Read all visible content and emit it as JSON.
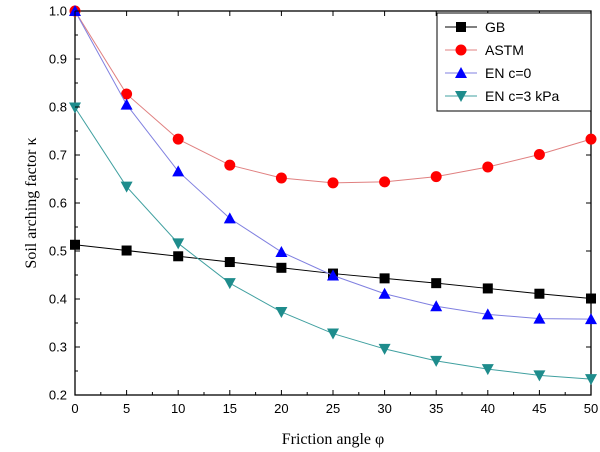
{
  "chart_data": {
    "type": "line",
    "title": "",
    "xlabel": "Friction angle φ",
    "ylabel": "Soil arching factor κ",
    "xlim": [
      0,
      50
    ],
    "ylim": [
      0.2,
      1.0
    ],
    "x_ticks": [
      "0",
      "5",
      "10",
      "15",
      "20",
      "25",
      "30",
      "35",
      "40",
      "45",
      "50"
    ],
    "y_ticks": [
      "0.2",
      "0.3",
      "0.4",
      "0.5",
      "0.6",
      "0.7",
      "0.8",
      "0.9",
      "1.0"
    ],
    "grid": false,
    "legend_position": "top-right",
    "x": [
      0,
      5,
      10,
      15,
      20,
      25,
      30,
      35,
      40,
      45,
      50
    ],
    "series": [
      {
        "name": "GB",
        "marker": "square",
        "line_color": "#000000",
        "marker_color": "#000000",
        "values": [
          0.513,
          0.501,
          0.489,
          0.477,
          0.465,
          0.453,
          0.443,
          0.433,
          0.422,
          0.411,
          0.401
        ]
      },
      {
        "name": "ASTM",
        "marker": "circle",
        "line_color": "#e08080",
        "marker_color": "#ff0000",
        "values": [
          1.0,
          0.827,
          0.733,
          0.679,
          0.652,
          0.642,
          0.644,
          0.655,
          0.675,
          0.701,
          0.733
        ]
      },
      {
        "name": "EN c=0",
        "marker": "triangle-up",
        "line_color": "#8080e0",
        "marker_color": "#0000ff",
        "values": [
          1.0,
          0.805,
          0.666,
          0.568,
          0.498,
          0.449,
          0.411,
          0.385,
          0.368,
          0.359,
          0.358
        ]
      },
      {
        "name": "EN c=3 kPa",
        "marker": "triangle-down",
        "line_color": "#40a0a0",
        "marker_color": "#1e8c8c",
        "values": [
          0.799,
          0.634,
          0.516,
          0.433,
          0.373,
          0.328,
          0.296,
          0.271,
          0.254,
          0.241,
          0.233
        ]
      }
    ]
  }
}
